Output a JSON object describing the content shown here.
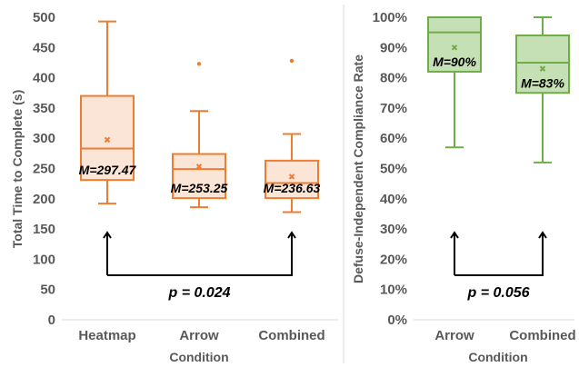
{
  "chart_data": [
    {
      "type": "box",
      "xlabel": "Condition",
      "ylabel": "Total Time to Complete (s)",
      "ylim": [
        0,
        500
      ],
      "yticks": [
        "0",
        "50",
        "100",
        "150",
        "200",
        "250",
        "300",
        "350",
        "400",
        "450",
        "500"
      ],
      "color": "#ED7D31",
      "fill": "#FBE5D6",
      "grid": false,
      "categories": [
        "Heatmap",
        "Arrow",
        "Combined"
      ],
      "boxes": [
        {
          "min": 192,
          "q1": 231,
          "median": 283,
          "q3": 370,
          "max": 493,
          "mean": 297.47,
          "outliers": [],
          "mean_label": "M=297.47"
        },
        {
          "min": 186,
          "q1": 201,
          "median": 249,
          "q3": 274,
          "max": 345,
          "mean": 253.25,
          "outliers": [
            423
          ],
          "mean_label": "M=253.25"
        },
        {
          "min": 178,
          "q1": 201,
          "median": 226,
          "q3": 263,
          "max": 307,
          "mean": 236.63,
          "outliers": [
            428
          ],
          "mean_label": "M=236.63"
        }
      ],
      "comparison": {
        "from": "Heatmap",
        "to": "Combined",
        "label": "p = 0.024"
      }
    },
    {
      "type": "box",
      "xlabel": "Condition",
      "ylabel": "Defuse-Independent Compliance Rate",
      "ylim": [
        0,
        100
      ],
      "yticks": [
        "0%",
        "10%",
        "20%",
        "30%",
        "40%",
        "50%",
        "60%",
        "70%",
        "80%",
        "90%",
        "100%"
      ],
      "color": "#70AD47",
      "fill": "#C5E0B4",
      "grid": false,
      "categories": [
        "Arrow",
        "Combined"
      ],
      "boxes": [
        {
          "min": 57,
          "q1": 82,
          "median": 95,
          "q3": 100,
          "max": 100,
          "mean": 90,
          "outliers": [],
          "mean_label": "M=90%"
        },
        {
          "min": 52,
          "q1": 75,
          "median": 85,
          "q3": 94,
          "max": 100,
          "mean": 83,
          "outliers": [],
          "mean_label": "M=83%"
        }
      ],
      "comparison": {
        "from": "Arrow",
        "to": "Combined",
        "label": "p = 0.056"
      }
    }
  ]
}
